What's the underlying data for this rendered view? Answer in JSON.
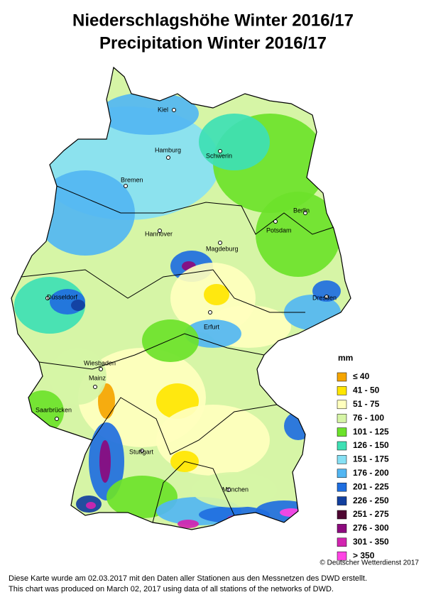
{
  "title": [
    "Niederschlagshöhe Winter 2016/17",
    "Precipitation Winter 2016/17"
  ],
  "cities": [
    "Kiel",
    "Hamburg",
    "Schwerin",
    "Bremen",
    "Berlin",
    "Potsdam",
    "Hannover",
    "Magdeburg",
    "Düsseldorf",
    "Erfurt",
    "Dresden",
    "Wiesbaden",
    "Mainz",
    "Saarbrücken",
    "Stuttgart",
    "München"
  ],
  "legend": {
    "title": "mm",
    "items": [
      {
        "label": "≤  40",
        "color": "#f5a500"
      },
      {
        "label": "41 - 50",
        "color": "#ffe600"
      },
      {
        "label": "51 - 75",
        "color": "#ffffbe"
      },
      {
        "label": "76 - 100",
        "color": "#d6f5a6"
      },
      {
        "label": "101 - 125",
        "color": "#6ce22a"
      },
      {
        "label": "126 - 150",
        "color": "#3ee0b4"
      },
      {
        "label": "151 - 175",
        "color": "#86e0f4"
      },
      {
        "label": "176 - 200",
        "color": "#52b6f2"
      },
      {
        "label": "201 - 225",
        "color": "#1f6ee0"
      },
      {
        "label": "226 - 250",
        "color": "#123f9e"
      },
      {
        "label": "251 - 275",
        "color": "#4e0632"
      },
      {
        "label": "276 - 300",
        "color": "#8c0a7e"
      },
      {
        "label": "301 - 350",
        "color": "#d224b0"
      },
      {
        "label": "> 350",
        "color": "#ff44e4"
      }
    ]
  },
  "copyright": "© Deutscher Wetterdienst 2017",
  "notes": [
    "Diese Karte wurde am 02.03.2017 mit den Daten aller Stationen aus den Messnetzen des DWD erstellt.",
    "This chart was produced on March 02, 2017 using data of all stations of the networks of DWD."
  ]
}
